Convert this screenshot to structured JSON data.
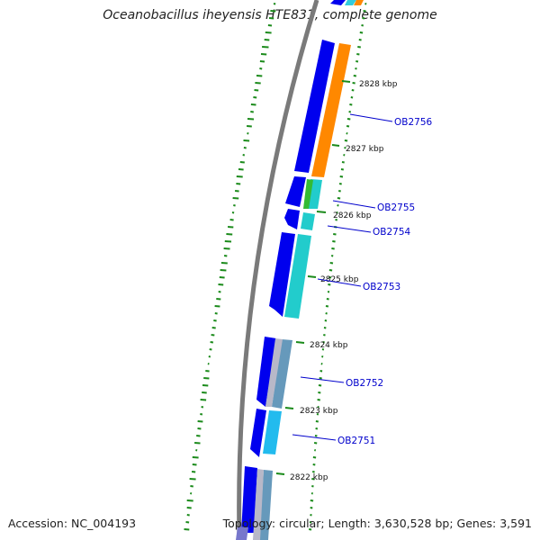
{
  "title": "Oceanobacillus iheyensis HTE831, complete genome",
  "footer": {
    "accession": "Accession: NC_004193",
    "summary": "Topology: circular; Length: 3,630,528 bp; Genes: 3,591"
  },
  "colors": {
    "backbone": "#777777",
    "gc_skew": "#1a8a1a",
    "forward_cds": "#0000ee",
    "label_line": "#0000cc"
  },
  "kbp_ticks": [
    "2828 kbp",
    "2827 kbp",
    "2826 kbp",
    "2825 kbp",
    "2824 kbp",
    "2823 kbp",
    "2822 kbp"
  ],
  "gene_labels": [
    "OB2756",
    "OB2755",
    "OB2754",
    "OB2753",
    "OB2752",
    "OB2751"
  ]
}
